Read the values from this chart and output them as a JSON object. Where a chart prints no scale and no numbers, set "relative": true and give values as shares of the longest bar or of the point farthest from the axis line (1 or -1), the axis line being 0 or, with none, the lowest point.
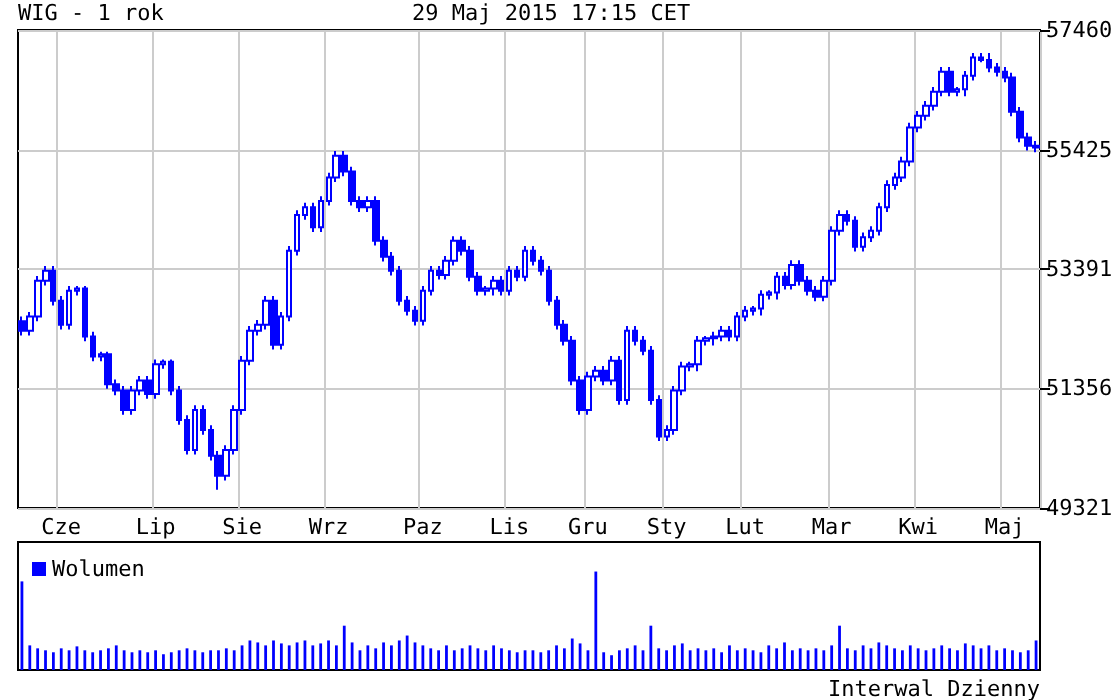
{
  "chart_data": [
    {
      "type": "candlestick",
      "title": "WIG - 1 rok",
      "subtitle": "29 Maj 2015 17:15 CET",
      "color": "#0000ff",
      "grid": true,
      "ylim": [
        49321,
        57460
      ],
      "yticks": [
        49321,
        51356,
        53391,
        55425,
        57460
      ],
      "categories": [
        null,
        null,
        null,
        null,
        null,
        "Cze",
        null,
        null,
        null,
        null,
        null,
        null,
        null,
        null,
        null,
        null,
        null,
        "Lip",
        null,
        null,
        null,
        null,
        null,
        null,
        null,
        null,
        null,
        null,
        "Sie",
        null,
        null,
        null,
        null,
        null,
        null,
        null,
        null,
        null,
        null,
        "Wrz",
        null,
        null,
        null,
        null,
        null,
        null,
        null,
        null,
        null,
        null,
        null,
        "Paz",
        null,
        null,
        null,
        null,
        null,
        null,
        null,
        null,
        null,
        null,
        "Lis",
        null,
        null,
        null,
        null,
        null,
        null,
        null,
        null,
        null,
        "Gru",
        null,
        null,
        null,
        null,
        null,
        null,
        null,
        null,
        null,
        "Sty",
        null,
        null,
        null,
        null,
        null,
        null,
        null,
        null,
        null,
        "Lut",
        null,
        null,
        null,
        null,
        null,
        null,
        null,
        null,
        null,
        null,
        "Mar",
        null,
        null,
        null,
        null,
        null,
        null,
        null,
        null,
        null,
        null,
        "Kwi",
        null,
        null,
        null,
        null,
        null,
        null,
        null,
        null,
        null,
        null,
        "Maj",
        null,
        null,
        null,
        null
      ],
      "ohlc": [
        [
          52500,
          52580,
          52260,
          52340
        ],
        [
          52340,
          52660,
          52260,
          52580
        ],
        [
          52580,
          53270,
          52500,
          53190
        ],
        [
          53190,
          53440,
          53110,
          53360
        ],
        [
          53360,
          53440,
          52770,
          52850
        ],
        [
          52850,
          52930,
          52360,
          52440
        ],
        [
          52440,
          53100,
          52360,
          53020
        ],
        [
          53020,
          53100,
          52940,
          53060
        ],
        [
          53060,
          53100,
          52160,
          52240
        ],
        [
          52240,
          52320,
          51820,
          51900
        ],
        [
          51900,
          51980,
          51820,
          51940
        ],
        [
          51940,
          51980,
          51350,
          51430
        ],
        [
          51430,
          51510,
          51240,
          51320
        ],
        [
          51320,
          51400,
          50910,
          50990
        ],
        [
          50990,
          51400,
          50910,
          51320
        ],
        [
          51320,
          51570,
          51240,
          51490
        ],
        [
          51490,
          51570,
          51180,
          51260
        ],
        [
          51260,
          51850,
          51180,
          51770
        ],
        [
          51770,
          51850,
          51690,
          51810
        ],
        [
          51810,
          51850,
          51240,
          51320
        ],
        [
          51320,
          51400,
          50740,
          50820
        ],
        [
          50820,
          50900,
          50230,
          50310
        ],
        [
          50310,
          51070,
          50230,
          50990
        ],
        [
          50990,
          51070,
          50570,
          50650
        ],
        [
          50650,
          50730,
          50130,
          50210
        ],
        [
          50210,
          50290,
          49630,
          49870
        ],
        [
          49870,
          50390,
          49790,
          50310
        ],
        [
          50310,
          51070,
          50230,
          50990
        ],
        [
          50990,
          51910,
          50910,
          51830
        ],
        [
          51830,
          52420,
          51750,
          52340
        ],
        [
          52340,
          52520,
          52260,
          52440
        ],
        [
          52440,
          52930,
          52360,
          52850
        ],
        [
          52850,
          52930,
          52020,
          52100
        ],
        [
          52100,
          52660,
          52020,
          52580
        ],
        [
          52580,
          53780,
          52500,
          53700
        ],
        [
          53700,
          54390,
          53620,
          54310
        ],
        [
          54310,
          54520,
          54230,
          54440
        ],
        [
          54440,
          54520,
          54020,
          54100
        ],
        [
          54100,
          54630,
          54020,
          54550
        ],
        [
          54550,
          55030,
          54470,
          54950
        ],
        [
          54950,
          55400,
          54870,
          55320
        ],
        [
          55320,
          55400,
          54970,
          55050
        ],
        [
          55050,
          55130,
          54470,
          54550
        ],
        [
          54550,
          54630,
          54360,
          54440
        ],
        [
          54440,
          54630,
          54360,
          54550
        ],
        [
          54550,
          54630,
          53790,
          53870
        ],
        [
          53870,
          53950,
          53520,
          53600
        ],
        [
          53600,
          53680,
          53280,
          53360
        ],
        [
          53360,
          53440,
          52770,
          52850
        ],
        [
          52850,
          52930,
          52600,
          52680
        ],
        [
          52680,
          52760,
          52430,
          52510
        ],
        [
          52510,
          53100,
          52430,
          53020
        ],
        [
          53020,
          53440,
          52940,
          53360
        ],
        [
          53360,
          53440,
          53210,
          53290
        ],
        [
          53290,
          53610,
          53210,
          53530
        ],
        [
          53530,
          53950,
          53450,
          53870
        ],
        [
          53870,
          53950,
          53620,
          53700
        ],
        [
          53700,
          53780,
          53180,
          53260
        ],
        [
          53260,
          53340,
          52940,
          53020
        ],
        [
          53020,
          53100,
          52940,
          53060
        ],
        [
          53060,
          53270,
          52940,
          53190
        ],
        [
          53190,
          53270,
          52940,
          53020
        ],
        [
          53020,
          53440,
          52940,
          53360
        ],
        [
          53360,
          53440,
          53180,
          53260
        ],
        [
          53260,
          53780,
          53180,
          53700
        ],
        [
          53700,
          53780,
          53450,
          53530
        ],
        [
          53530,
          53610,
          53280,
          53360
        ],
        [
          53360,
          53440,
          52770,
          52850
        ],
        [
          52850,
          52930,
          52360,
          52440
        ],
        [
          52440,
          52520,
          52090,
          52170
        ],
        [
          52170,
          52250,
          51410,
          51490
        ],
        [
          51490,
          51570,
          50910,
          50990
        ],
        [
          50990,
          51640,
          50910,
          51560
        ],
        [
          51560,
          51740,
          51480,
          51660
        ],
        [
          51660,
          51740,
          51410,
          51490
        ],
        [
          51490,
          51910,
          51410,
          51830
        ],
        [
          51830,
          51910,
          51080,
          51160
        ],
        [
          51160,
          52420,
          51080,
          52340
        ],
        [
          52340,
          52420,
          52090,
          52170
        ],
        [
          52170,
          52250,
          51920,
          52000
        ],
        [
          52000,
          52080,
          51080,
          51160
        ],
        [
          51160,
          51240,
          50460,
          50540
        ],
        [
          50540,
          50730,
          50460,
          50650
        ],
        [
          50650,
          51400,
          50570,
          51320
        ],
        [
          51320,
          51810,
          51240,
          51730
        ],
        [
          51730,
          51810,
          51650,
          51770
        ],
        [
          51770,
          52250,
          51650,
          52170
        ],
        [
          52170,
          52250,
          52090,
          52210
        ],
        [
          52210,
          52320,
          52090,
          52240
        ],
        [
          52240,
          52420,
          52160,
          52340
        ],
        [
          52340,
          52420,
          52160,
          52240
        ],
        [
          52240,
          52660,
          52160,
          52580
        ],
        [
          52580,
          52760,
          52500,
          52680
        ],
        [
          52680,
          52760,
          52600,
          52720
        ],
        [
          52720,
          53030,
          52600,
          52950
        ],
        [
          52950,
          53030,
          52870,
          52990
        ],
        [
          52990,
          53340,
          52870,
          53260
        ],
        [
          53260,
          53340,
          53040,
          53120
        ],
        [
          53120,
          53540,
          53040,
          53460
        ],
        [
          53460,
          53540,
          53110,
          53190
        ],
        [
          53190,
          53270,
          52940,
          53020
        ],
        [
          53020,
          53100,
          52840,
          52920
        ],
        [
          52920,
          53270,
          52840,
          53190
        ],
        [
          53190,
          54120,
          53110,
          54040
        ],
        [
          54040,
          54390,
          53960,
          54310
        ],
        [
          54310,
          54390,
          54130,
          54210
        ],
        [
          54210,
          54290,
          53690,
          53770
        ],
        [
          53770,
          54010,
          53690,
          53930
        ],
        [
          53930,
          54120,
          53850,
          54040
        ],
        [
          54040,
          54520,
          53960,
          54440
        ],
        [
          54440,
          54900,
          54360,
          54820
        ],
        [
          54820,
          55030,
          54740,
          54950
        ],
        [
          54950,
          55300,
          54870,
          55220
        ],
        [
          55220,
          55880,
          55140,
          55800
        ],
        [
          55800,
          56080,
          55720,
          56000
        ],
        [
          56000,
          56250,
          55920,
          56170
        ],
        [
          56170,
          56490,
          56090,
          56410
        ],
        [
          56410,
          56830,
          56330,
          56750
        ],
        [
          56750,
          56830,
          56330,
          56410
        ],
        [
          56410,
          56490,
          56330,
          56450
        ],
        [
          56450,
          56760,
          56330,
          56680
        ],
        [
          56680,
          57070,
          56600,
          56990
        ],
        [
          56990,
          57070,
          56910,
          56950
        ],
        [
          56950,
          57070,
          56740,
          56820
        ],
        [
          56820,
          56900,
          56670,
          56750
        ],
        [
          56750,
          56830,
          56570,
          56650
        ],
        [
          56650,
          56730,
          55990,
          56070
        ],
        [
          56070,
          56150,
          55550,
          55630
        ],
        [
          55630,
          55710,
          55410,
          55490
        ],
        [
          55490,
          55570,
          55380,
          55460
        ]
      ]
    },
    {
      "type": "bar",
      "relative": true,
      "legend": "top left",
      "annotations": [
        "Interwal Dzienny"
      ],
      "categories": [
        null,
        null,
        null,
        null,
        null,
        null,
        null,
        null,
        null,
        null,
        null,
        null,
        null,
        null,
        null,
        null,
        null,
        null,
        null,
        null,
        null,
        null,
        null,
        null,
        null,
        null,
        null,
        null,
        null,
        null,
        null,
        null,
        null,
        null,
        null,
        null,
        null,
        null,
        null,
        null,
        null,
        null,
        null,
        null,
        null,
        null,
        null,
        null,
        null,
        null,
        null,
        null,
        null,
        null,
        null,
        null,
        null,
        null,
        null,
        null,
        null,
        null,
        null,
        null,
        null,
        null,
        null,
        null,
        null,
        null,
        null,
        null,
        null,
        null,
        null,
        null,
        null,
        null,
        null,
        null,
        null,
        null,
        null,
        null,
        null,
        null,
        null,
        null,
        null,
        null,
        null,
        null,
        null,
        null,
        null,
        null,
        null,
        null,
        null,
        null,
        null,
        null,
        null,
        null,
        null,
        null,
        null,
        null,
        null,
        null,
        null,
        null,
        null,
        null,
        null,
        null,
        null,
        null,
        null,
        null,
        null,
        null,
        null,
        null,
        null,
        null,
        null,
        null,
        null,
        null
      ],
      "series": [
        {
          "name": "Wolumen",
          "color": "#0000ff",
          "values": [
            0.9,
            0.25,
            0.22,
            0.2,
            0.18,
            0.22,
            0.2,
            0.24,
            0.2,
            0.18,
            0.2,
            0.22,
            0.25,
            0.2,
            0.18,
            0.2,
            0.18,
            0.2,
            0.16,
            0.18,
            0.2,
            0.22,
            0.2,
            0.18,
            0.2,
            0.2,
            0.22,
            0.2,
            0.25,
            0.3,
            0.28,
            0.25,
            0.3,
            0.27,
            0.25,
            0.28,
            0.3,
            0.25,
            0.27,
            0.3,
            0.25,
            0.45,
            0.28,
            0.2,
            0.25,
            0.22,
            0.28,
            0.25,
            0.3,
            0.35,
            0.28,
            0.25,
            0.22,
            0.2,
            0.25,
            0.2,
            0.22,
            0.25,
            0.22,
            0.2,
            0.25,
            0.22,
            0.2,
            0.18,
            0.2,
            0.2,
            0.18,
            0.2,
            0.25,
            0.22,
            0.32,
            0.27,
            0.2,
            1.0,
            0.18,
            0.15,
            0.2,
            0.22,
            0.25,
            0.2,
            0.45,
            0.22,
            0.2,
            0.25,
            0.27,
            0.2,
            0.22,
            0.2,
            0.22,
            0.18,
            0.25,
            0.2,
            0.22,
            0.2,
            0.18,
            0.25,
            0.22,
            0.28,
            0.2,
            0.22,
            0.2,
            0.22,
            0.2,
            0.25,
            0.45,
            0.22,
            0.2,
            0.25,
            0.22,
            0.28,
            0.25,
            0.22,
            0.2,
            0.25,
            0.22,
            0.2,
            0.22,
            0.25,
            0.22,
            0.2,
            0.27,
            0.25,
            0.22,
            0.25,
            0.2,
            0.22,
            0.2,
            0.18,
            0.2,
            0.3
          ]
        }
      ]
    }
  ]
}
